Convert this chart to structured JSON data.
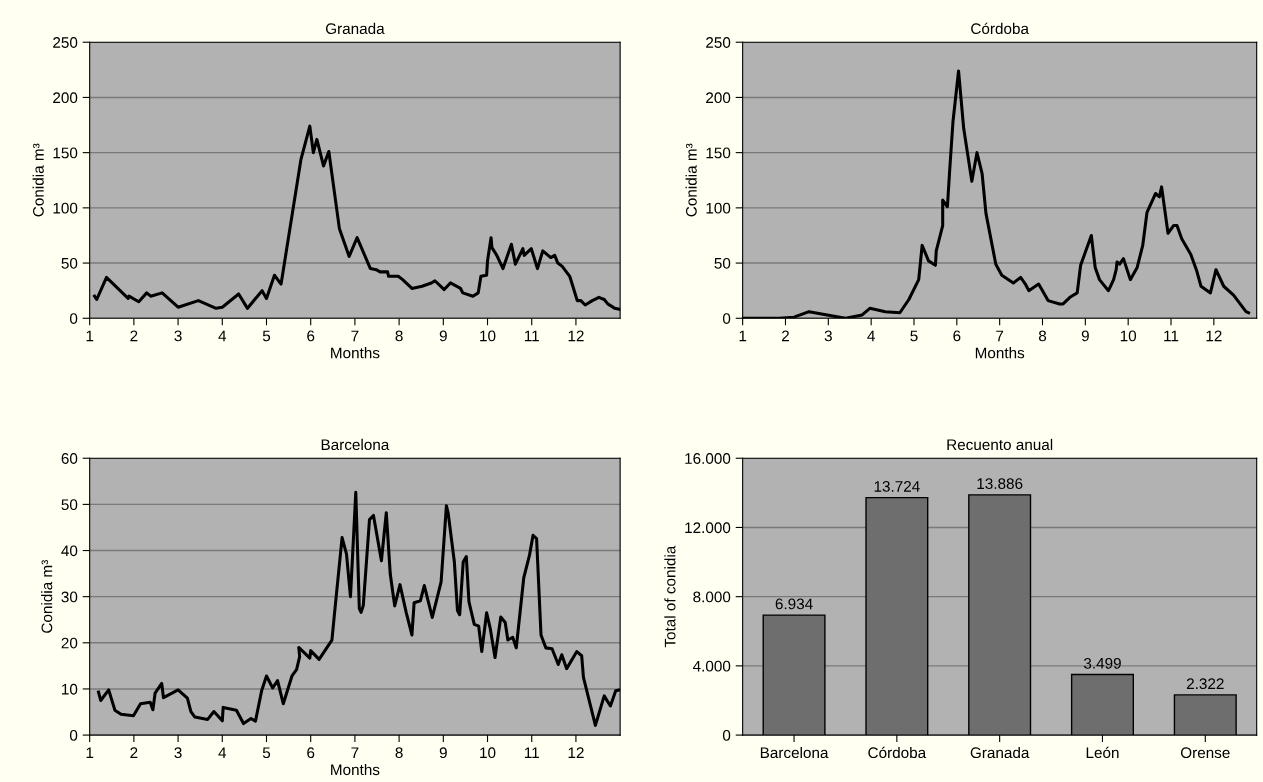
{
  "chart_data": [
    {
      "type": "line",
      "title": "Granada",
      "xlabel": "Months",
      "ylabel": "Conidia m³",
      "xlim": [
        1,
        13
      ],
      "xticks": [
        1,
        2,
        3,
        4,
        5,
        6,
        7,
        8,
        9,
        10,
        11,
        12
      ],
      "ylim": [
        0,
        250
      ],
      "yticks": [
        0,
        50,
        100,
        150,
        200,
        250
      ],
      "grid": "y",
      "line_style": "solid",
      "series": [
        {
          "color": "#000000",
          "x": [
            1.11,
            1.16,
            1.38,
            1.87,
            1.89,
            2.11,
            2.29,
            2.38,
            2.64,
            3.0,
            3.46,
            3.86,
            4.0,
            4.37,
            4.57,
            4.9,
            5.0,
            5.18,
            5.33,
            5.78,
            5.98,
            6.06,
            6.14,
            6.29,
            6.41,
            6.65,
            6.87,
            7.05,
            7.35,
            7.48,
            7.57,
            7.74,
            7.76,
            7.98,
            8.08,
            8.29,
            8.52,
            8.73,
            8.81,
            9.02,
            9.16,
            9.39,
            9.44,
            9.67,
            9.79,
            9.85,
            9.98,
            10.0,
            10.08,
            10.1,
            10.21,
            10.35,
            10.54,
            10.63,
            10.8,
            10.83,
            10.99,
            11.13,
            11.25,
            11.43,
            11.52,
            11.59,
            11.69,
            11.86,
            12.0,
            12.03,
            12.11,
            12.21,
            12.37,
            12.52,
            12.64,
            12.72,
            12.88,
            13.0
          ],
          "values": [
            20,
            17,
            37,
            18,
            20,
            15,
            23,
            20,
            23,
            10,
            16,
            9,
            10,
            22,
            9,
            25,
            18,
            39,
            31,
            144,
            174,
            150,
            162,
            138,
            151,
            81,
            56,
            73,
            45,
            44,
            42,
            42,
            38,
            38,
            35,
            27,
            29,
            32,
            34,
            26,
            32,
            27,
            23,
            20,
            23,
            38,
            39,
            52,
            73,
            64,
            57,
            45,
            67,
            49,
            63,
            57,
            63,
            45,
            61,
            55,
            57,
            50,
            47,
            38,
            20,
            16,
            16,
            12,
            16,
            19,
            17,
            13,
            9,
            8
          ]
        }
      ]
    },
    {
      "type": "line",
      "title": "Córdoba",
      "xlabel": "Months",
      "ylabel": "Conidia m³",
      "xlim": [
        1,
        13
      ],
      "xticks": [
        1,
        2,
        3,
        4,
        5,
        6,
        7,
        8,
        9,
        10,
        11,
        12
      ],
      "ylim": [
        0,
        250
      ],
      "yticks": [
        0,
        50,
        100,
        150,
        200,
        250
      ],
      "grid": "y",
      "line_style": "solid",
      "series": [
        {
          "color": "#000000",
          "x": [
            1.0,
            1.85,
            2.2,
            2.55,
            3.4,
            3.79,
            3.97,
            4.33,
            4.67,
            4.88,
            5.11,
            5.19,
            5.34,
            5.5,
            5.52,
            5.67,
            5.67,
            5.78,
            5.83,
            5.91,
            6.04,
            6.16,
            6.35,
            6.47,
            6.59,
            6.68,
            6.91,
            7.05,
            7.32,
            7.49,
            7.6,
            7.68,
            7.91,
            8.13,
            8.4,
            8.48,
            8.64,
            8.81,
            8.89,
            9.14,
            9.23,
            9.33,
            9.54,
            9.66,
            9.72,
            9.74,
            9.8,
            9.89,
            10.05,
            10.21,
            10.34,
            10.44,
            10.64,
            10.73,
            10.78,
            10.93,
            11.06,
            11.14,
            11.25,
            11.46,
            11.6,
            11.7,
            11.92,
            12.05,
            12.23,
            12.46,
            12.75,
            12.81
          ],
          "values": [
            0,
            0,
            1,
            6,
            0,
            3,
            9,
            6,
            5,
            17,
            35,
            66,
            52,
            48,
            61,
            84,
            107,
            101,
            132,
            178,
            224,
            172,
            124,
            150,
            131,
            95,
            49,
            39,
            32,
            37,
            31,
            25,
            31,
            16,
            13,
            13,
            19,
            23,
            48,
            75,
            46,
            35,
            25,
            35,
            44,
            51,
            49,
            54,
            35,
            46,
            66,
            96,
            113,
            110,
            119,
            77,
            84,
            84,
            72,
            58,
            43,
            29,
            23,
            44,
            29,
            21,
            6,
            5
          ]
        }
      ]
    },
    {
      "type": "line",
      "title": "Barcelona",
      "xlabel": "Months",
      "ylabel": "Conidia m³",
      "xlim": [
        1,
        13
      ],
      "xticks": [
        1,
        2,
        3,
        4,
        5,
        6,
        7,
        8,
        9,
        10,
        11,
        12
      ],
      "ylim": [
        0,
        60
      ],
      "yticks": [
        0,
        10,
        20,
        30,
        40,
        50,
        60
      ],
      "grid": "y",
      "line_style": "solid",
      "series": [
        {
          "color": "#000000",
          "x": [
            1.2,
            1.25,
            1.43,
            1.57,
            1.71,
            1.99,
            2.15,
            2.37,
            2.43,
            2.48,
            2.63,
            2.67,
            3.0,
            3.21,
            3.29,
            3.38,
            3.67,
            3.81,
            4.0,
            4.02,
            4.32,
            4.48,
            4.65,
            4.75,
            4.89,
            5.0,
            5.14,
            5.25,
            5.38,
            5.58,
            5.68,
            5.75,
            5.73,
            5.98,
            6.0,
            6.19,
            6.48,
            6.53,
            6.71,
            6.81,
            6.9,
            7.02,
            7.1,
            7.14,
            7.19,
            7.33,
            7.42,
            7.6,
            7.71,
            7.8,
            7.9,
            8.02,
            8.16,
            8.29,
            8.34,
            8.48,
            8.57,
            8.75,
            8.95,
            9.07,
            9.11,
            9.25,
            9.32,
            9.37,
            9.45,
            9.52,
            9.58,
            9.7,
            9.8,
            9.87,
            9.98,
            10.06,
            10.17,
            10.3,
            10.4,
            10.46,
            10.57,
            10.65,
            10.82,
            10.95,
            11.03,
            11.11,
            11.21,
            11.32,
            11.46,
            11.6,
            11.68,
            11.79,
            12.02,
            12.13,
            12.17,
            12.44,
            12.64,
            12.78,
            12.9,
            13.0
          ],
          "values": [
            9.3,
            7.5,
            9.8,
            5.4,
            4.5,
            4.2,
            6.8,
            7.1,
            5.5,
            9.1,
            11.2,
            8.1,
            9.8,
            8.0,
            5.1,
            3.9,
            3.4,
            5.1,
            3.1,
            6.0,
            5.4,
            2.5,
            3.6,
            3.0,
            9.6,
            12.8,
            10.2,
            11.8,
            6.8,
            12.9,
            14.2,
            17.0,
            19.0,
            16.7,
            18.3,
            16.4,
            20.6,
            25.5,
            42.8,
            39.2,
            30.0,
            52.6,
            27.4,
            26.6,
            28.1,
            46.7,
            47.6,
            37.8,
            48.2,
            34.9,
            28.0,
            32.6,
            26.6,
            21.7,
            28.7,
            29.1,
            32.4,
            25.5,
            33.2,
            49.7,
            48.1,
            37.5,
            27.0,
            26.1,
            37.5,
            38.7,
            28.9,
            24.0,
            23.6,
            18.1,
            26.5,
            23.2,
            16.8,
            25.6,
            24.4,
            20.6,
            21.2,
            18.9,
            34.1,
            39.0,
            43.3,
            42.6,
            21.7,
            18.9,
            18.7,
            15.3,
            17.4,
            14.4,
            18.1,
            17.2,
            12.5,
            2.1,
            8.5,
            6.3,
            9.6,
            9.8
          ]
        }
      ]
    },
    {
      "type": "bar",
      "title": "Recuento anual",
      "ylabel": "Total of conidia",
      "categories": [
        "Barcelona",
        "Córdoba",
        "Granada",
        "León",
        "Orense"
      ],
      "ylim": [
        0,
        16000
      ],
      "yticks": [
        {
          "value": 0,
          "label": "0"
        },
        {
          "value": 4000,
          "label": "4.000"
        },
        {
          "value": 8000,
          "label": "8.000"
        },
        {
          "value": 12000,
          "label": "12.000"
        },
        {
          "value": 16000,
          "label": "16.000"
        }
      ],
      "grid": "y",
      "series": [
        {
          "color": "#6e6e6e",
          "values": [
            6934,
            13724,
            13886,
            3499,
            2322
          ],
          "value_labels": [
            "6.934",
            "13.724",
            "13.886",
            "3.499",
            "2.322"
          ]
        }
      ]
    }
  ]
}
